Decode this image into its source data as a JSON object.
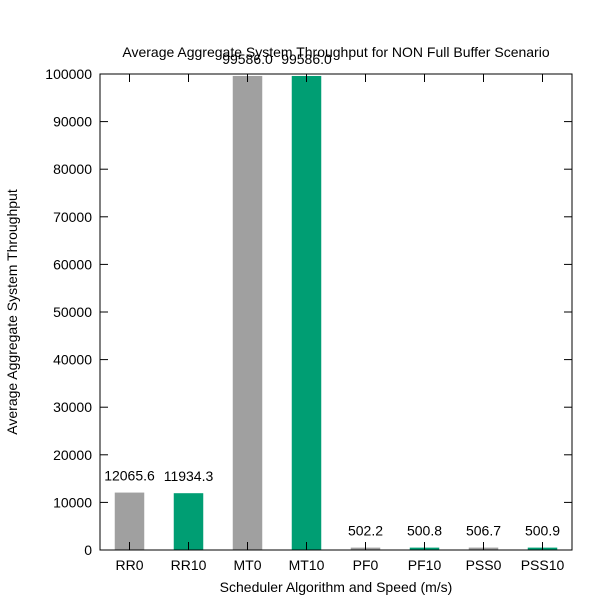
{
  "chart_data": {
    "type": "bar",
    "title": "Average Aggregate System Throughput for NON Full Buffer Scenario",
    "xlabel": "Scheduler Algorithm and Speed (m/s)",
    "ylabel": "Average Aggregate System Throughput",
    "categories": [
      "RR0",
      "RR10",
      "MT0",
      "MT10",
      "PF0",
      "PF10",
      "PSS0",
      "PSS10"
    ],
    "values": [
      12065.6,
      11934.3,
      99586.0,
      99586.0,
      502.2,
      500.8,
      506.7,
      500.9
    ],
    "data_labels": [
      "12065.6",
      "11934.3",
      "99586.0",
      "99586.0",
      "502.2",
      "500.8",
      "506.7",
      "500.9"
    ],
    "bar_colors": [
      "#a0a0a0",
      "#009e73",
      "#a0a0a0",
      "#009e73",
      "#a0a0a0",
      "#009e73",
      "#a0a0a0",
      "#009e73"
    ],
    "ylim": [
      0,
      100000
    ],
    "yticks": [
      0,
      10000,
      20000,
      30000,
      40000,
      50000,
      60000,
      70000,
      80000,
      90000,
      100000
    ],
    "grid": false,
    "legend": "none"
  }
}
